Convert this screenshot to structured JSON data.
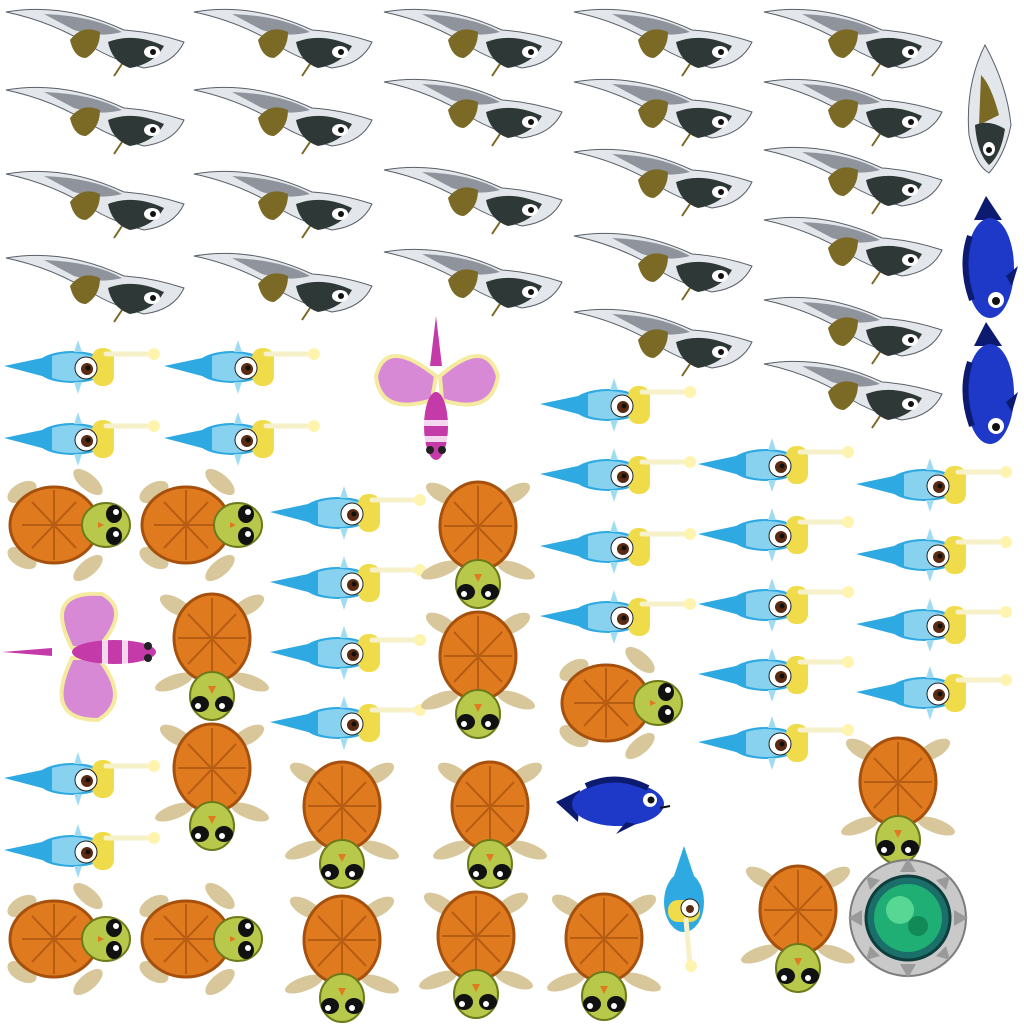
{
  "sheet": {
    "background": "#ffffff",
    "sprite_types": [
      "manta-ray",
      "anglerfish",
      "butterfly-fish",
      "sea-turtle",
      "blue-tang",
      "portal-medallion"
    ]
  },
  "palette": {
    "manta_back": "#8f949c",
    "manta_light": "#e3e7ec",
    "manta_dark": "#2e3836",
    "manta_fin": "#7a6a25",
    "angler_blue": "#2ea9e2",
    "angler_light": "#9fdcf2",
    "angler_yellow": "#f0dc4a",
    "angler_lure": "#fff3b0",
    "butterfly_wing": "#d889d6",
    "butterfly_body": "#c43aa8",
    "butterfly_edge": "#f4eaa0",
    "turtle_shell": "#e07a1f",
    "turtle_shell_dark": "#a6500e",
    "turtle_skin": "#b8c84a",
    "turtle_flipper": "#d7c79a",
    "tang_blue": "#1e39c8",
    "tang_dark": "#0c1a70",
    "portal_green": "#1fae73",
    "portal_silver": "#c9c9c9"
  }
}
